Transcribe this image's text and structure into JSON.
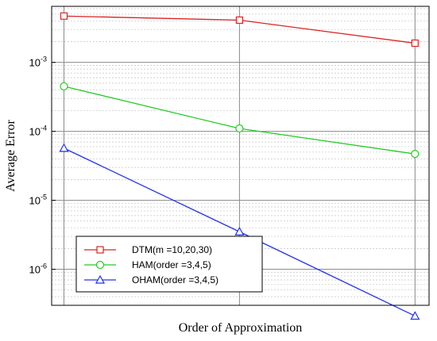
{
  "chart_data": {
    "type": "line",
    "title": "",
    "xlabel": "Order of Approximation",
    "ylabel": "Average Error",
    "yscale": "log",
    "ylim": [
      3e-07,
      0.0065
    ],
    "x_ticks_labeled": false,
    "grid": "major and minor",
    "legend_position": "bottom-left",
    "y_tick_labels": [
      {
        "value": 0.001,
        "base": "10",
        "exp": "-3"
      },
      {
        "value": 0.0001,
        "base": "10",
        "exp": "-4"
      },
      {
        "value": 1e-05,
        "base": "10",
        "exp": "-5"
      },
      {
        "value": 1e-06,
        "base": "10",
        "exp": "-6"
      }
    ],
    "x": [
      1,
      2,
      3
    ],
    "series": [
      {
        "name": "DTM(m =10,20,30)",
        "color": "#dd2222",
        "marker": "square",
        "values": [
          0.0047,
          0.0041,
          0.0019
        ]
      },
      {
        "name": "HAM(order =3,4,5)",
        "color": "#22cc22",
        "marker": "circle",
        "values": [
          0.00045,
          0.00011,
          4.7e-05
        ]
      },
      {
        "name": "OHAM(order =3,4,5)",
        "color": "#2233ee",
        "marker": "triangle",
        "values": [
          5.7e-05,
          3.5e-06,
          2.1e-07
        ]
      }
    ]
  }
}
